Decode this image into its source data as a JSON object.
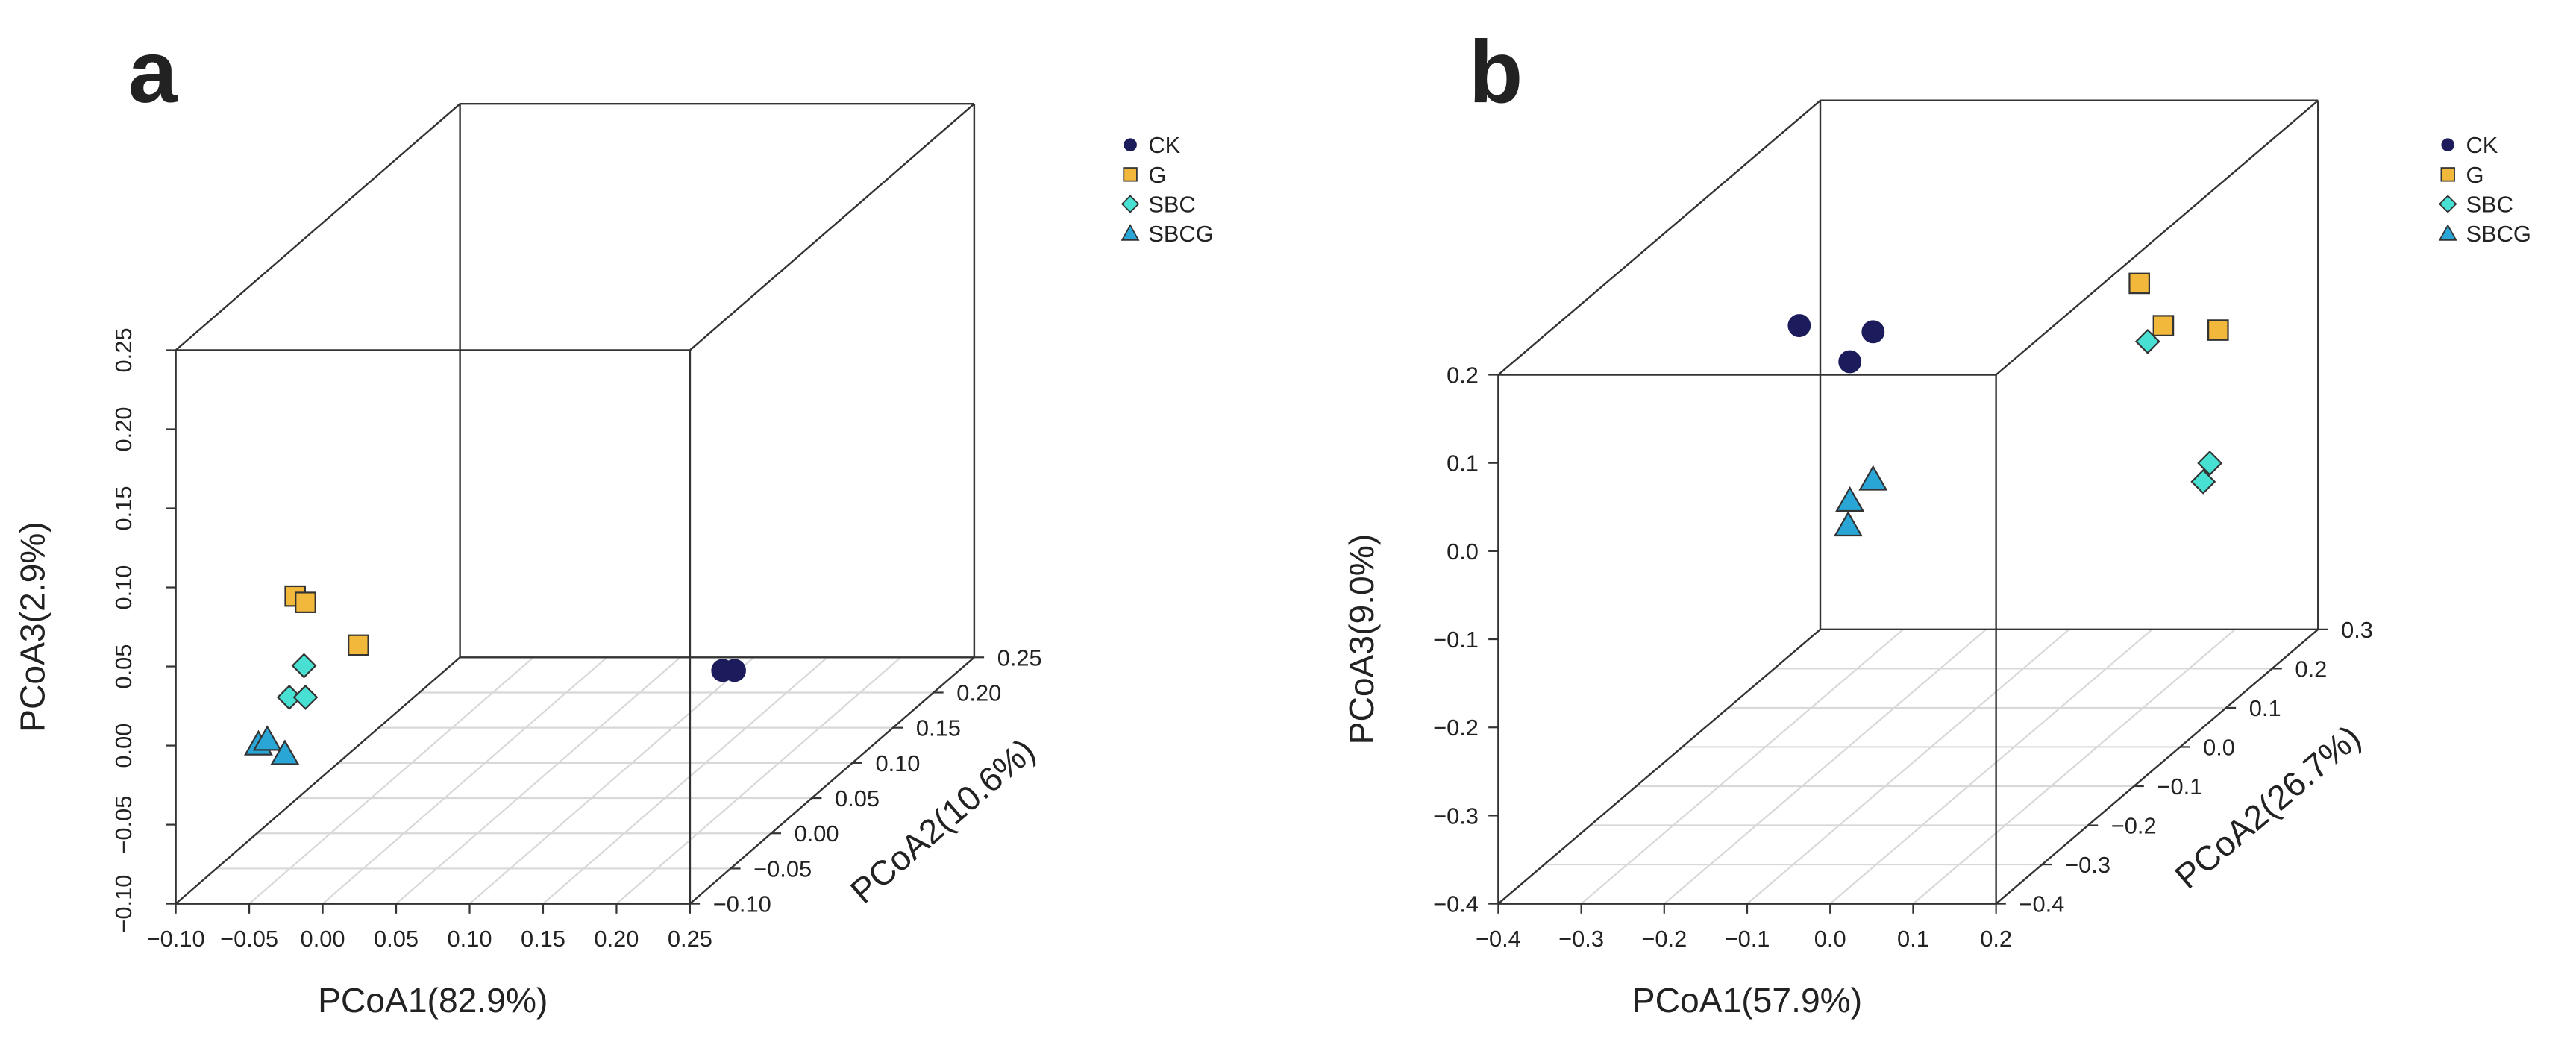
{
  "chart_data": [
    {
      "type": "scatter",
      "title": "a",
      "xlabel": "PCoA1(82.9%)",
      "ylabel": "PCoA2(10.6%)",
      "zlabel": "PCoA3(2.9%)",
      "xlim": [
        -0.1,
        0.25
      ],
      "ylim": [
        -0.1,
        0.25
      ],
      "zlim": [
        -0.1,
        0.25
      ],
      "xticks": [
        {
          "value": -0.1,
          "label": "−0.10"
        },
        {
          "value": -0.05,
          "label": "−0.05"
        },
        {
          "value": 0,
          "label": "0.00"
        },
        0.05,
        {
          "value": 0.1,
          "label": "0.10"
        },
        0.15,
        {
          "value": 0.2,
          "label": "0.20"
        },
        0.25
      ],
      "yticks": [
        {
          "value": -0.1,
          "label": "−0.10"
        },
        {
          "value": -0.05,
          "label": "−0.05"
        },
        {
          "value": 0,
          "label": "0.00"
        },
        0.05,
        {
          "value": 0.1,
          "label": "0.10"
        },
        0.15,
        {
          "value": 0.2,
          "label": "0.20"
        },
        0.25
      ],
      "zticks": [
        {
          "value": -0.1,
          "label": "−0.10"
        },
        {
          "value": -0.05,
          "label": "−0.05"
        },
        {
          "value": 0,
          "label": "0.00"
        },
        0.05,
        {
          "value": 0.1,
          "label": "0.10"
        },
        0.15,
        {
          "value": 0.2,
          "label": "0.20"
        },
        0.25
      ],
      "grid": true,
      "series": [
        {
          "name": "CK",
          "color": "#1c1c5c",
          "marker": "circle",
          "x": [
            0.217,
            0.225
          ],
          "y": [
            0,
            0
          ],
          "z": [
            0.003,
            0.003
          ]
        },
        {
          "name": "G",
          "color": "#f2b83c",
          "marker": "square",
          "x": [
            -0.074,
            -0.067,
            -0.031
          ],
          "y": [
            0,
            0,
            0
          ],
          "z": [
            0.05,
            0.046,
            0.019
          ]
        },
        {
          "name": "SBC",
          "color": "#48e0d2",
          "marker": "diamond",
          "x": [
            -0.068,
            -0.078,
            -0.067
          ],
          "y": [
            0,
            0,
            0
          ],
          "z": [
            0.006,
            -0.014,
            -0.014
          ]
        },
        {
          "name": "SBCG",
          "color": "#2aa6d6",
          "marker": "triangle",
          "x": [
            -0.099,
            -0.093,
            -0.081
          ],
          "y": [
            0,
            0,
            0
          ],
          "z": [
            -0.044,
            -0.041,
            -0.05
          ]
        }
      ]
    },
    {
      "type": "scatter",
      "title": "b",
      "xlabel": "PCoA1(57.9%)",
      "ylabel": "PCoA2(26.7%)",
      "zlabel": "PCoA3(9.0%)",
      "xlim": [
        -0.4,
        0.2
      ],
      "ylim": [
        -0.4,
        0.3
      ],
      "zlim": [
        -0.4,
        0.2
      ],
      "xticks": [
        {
          "value": -0.4,
          "label": "−0.4"
        },
        {
          "value": -0.3,
          "label": "−0.3"
        },
        {
          "value": -0.2,
          "label": "−0.2"
        },
        {
          "value": -0.1,
          "label": "−0.1"
        },
        {
          "value": 0,
          "label": "0.0"
        },
        0.1,
        0.2
      ],
      "yticks": [
        {
          "value": -0.4,
          "label": "−0.4"
        },
        {
          "value": -0.3,
          "label": "−0.3"
        },
        {
          "value": -0.2,
          "label": "−0.2"
        },
        {
          "value": -0.1,
          "label": "−0.1"
        },
        {
          "value": 0,
          "label": "0.0"
        },
        0.1,
        0.2,
        0.3
      ],
      "zticks": [
        {
          "value": -0.4,
          "label": "−0.4"
        },
        {
          "value": -0.3,
          "label": "−0.3"
        },
        {
          "value": -0.2,
          "label": "−0.2"
        },
        {
          "value": -0.1,
          "label": "−0.1"
        },
        {
          "value": 0,
          "label": "0.0"
        },
        0.1,
        0.2
      ],
      "grid": true,
      "series": [
        {
          "name": "CK",
          "color": "#1c1c5c",
          "marker": "circle",
          "x": [
            -0.259,
            -0.198,
            -0.17
          ],
          "y": [
            0,
            0,
            0
          ],
          "z": [
            0.078,
            0.037,
            0.071
          ]
        },
        {
          "name": "G",
          "color": "#f2b83c",
          "marker": "square",
          "x": [
            0.04,
            0.069,
            0.135
          ],
          "y": [
            0.2,
            0.2,
            0.2
          ],
          "z": [
            0.037,
            -0.011,
            -0.016
          ]
        },
        {
          "name": "SBC",
          "color": "#48e0d2",
          "marker": "diamond",
          "x": [
            0.05,
            0.125,
            0.117
          ],
          "y": [
            0.2,
            0.2,
            0.2
          ],
          "z": [
            -0.029,
            -0.167,
            -0.188
          ]
        },
        {
          "name": "SBCG",
          "color": "#2aa6d6",
          "marker": "triangle",
          "x": [
            -0.17,
            -0.198,
            -0.2
          ],
          "y": [
            0,
            0,
            0
          ],
          "z": [
            -0.097,
            -0.121,
            -0.149
          ]
        }
      ]
    }
  ]
}
